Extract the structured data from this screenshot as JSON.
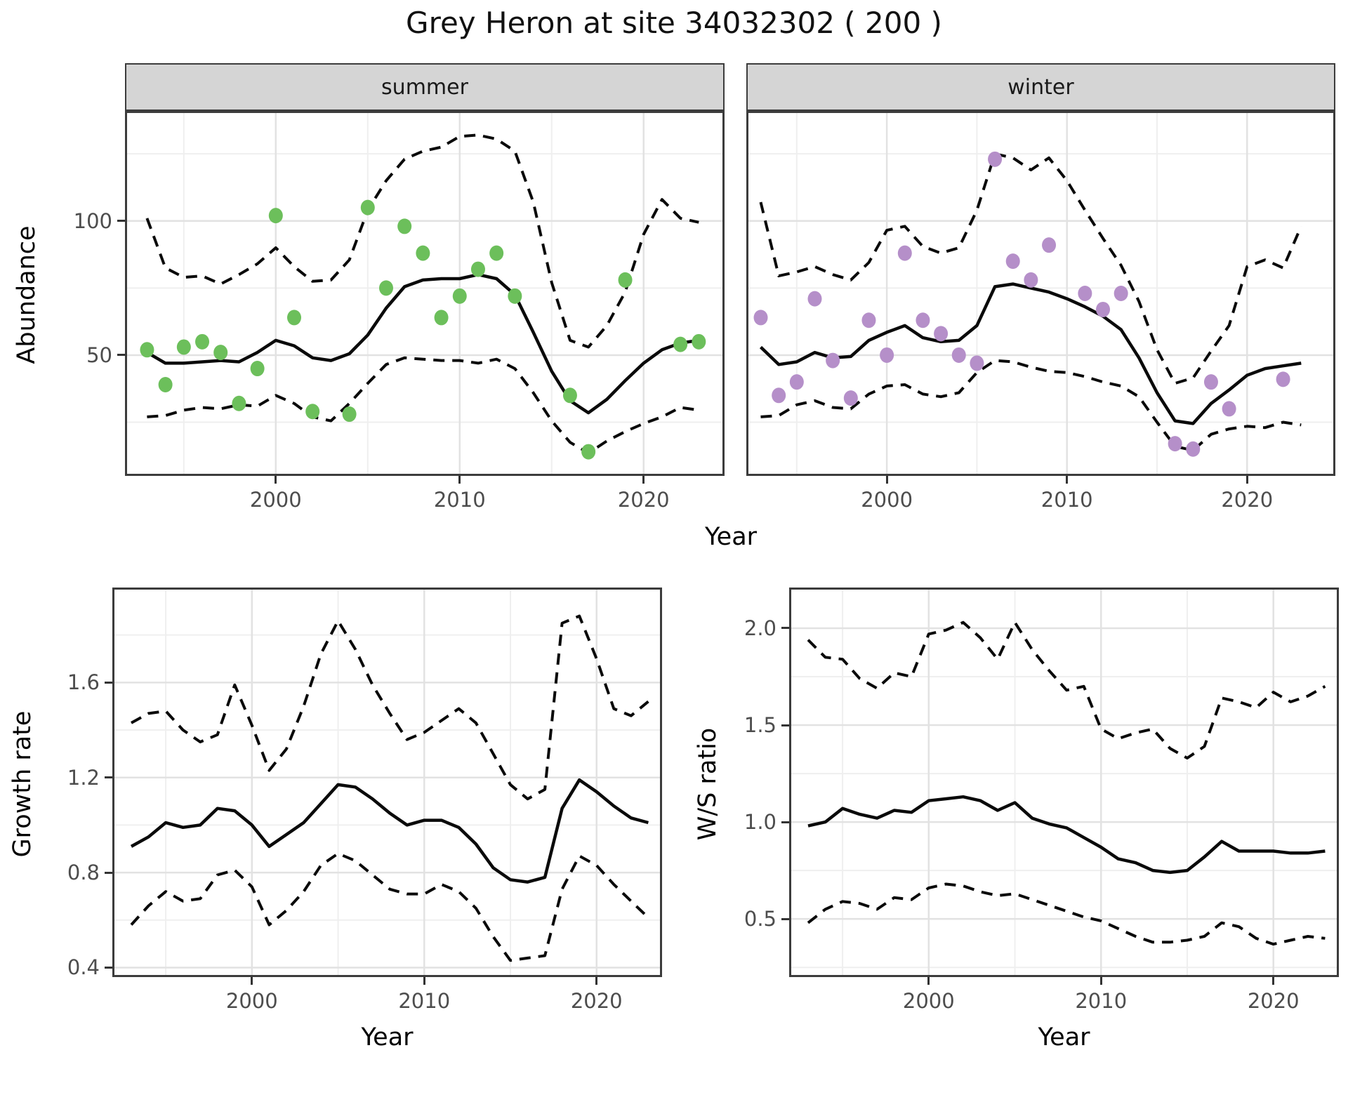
{
  "title": "Grey Heron at site 34032302 ( 200 )",
  "facets": {
    "summer": "summer",
    "winter": "winter"
  },
  "axes": {
    "abundance": "Abundance",
    "growth_rate": "Growth rate",
    "ws_ratio": "W/S ratio",
    "year": "Year"
  },
  "colors": {
    "summer_point": "#6cbf5b",
    "winter_point": "#b58fc9",
    "line": "#0a0a0a",
    "grid_major": "#e2e2e2",
    "grid_minor": "#efefef",
    "strip_bg": "#d5d5d5",
    "panel_border": "#3c3c3c",
    "tick_text": "#4d4d4d"
  },
  "chart_data": [
    {
      "id": "abundance-summer",
      "type": "line+scatter",
      "facet_label": "summer",
      "xlabel": "Year",
      "ylabel": "Abundance",
      "xlim": [
        1991.8,
        2024.4
      ],
      "ylim": [
        5,
        141
      ],
      "x_ticks": [
        2000,
        2010,
        2020
      ],
      "x_tick_labels": [
        "2000",
        "2010",
        "2020"
      ],
      "x_minor": [
        1995,
        2005,
        2015
      ],
      "y_ticks": [
        50,
        100
      ],
      "y_tick_labels": [
        "50",
        "100"
      ],
      "y_minor": [
        25,
        75,
        125
      ],
      "show_y_tick_labels": true,
      "years": [
        1993,
        1994,
        1995,
        1996,
        1997,
        1998,
        1999,
        2000,
        2001,
        2002,
        2003,
        2004,
        2005,
        2006,
        2007,
        2008,
        2009,
        2010,
        2011,
        2012,
        2013,
        2014,
        2015,
        2016,
        2017,
        2018,
        2019,
        2020,
        2021,
        2022,
        2023
      ],
      "series": [
        {
          "name": "fit",
          "style": "solid",
          "values": [
            51,
            47,
            47,
            47.5,
            48,
            47.5,
            51,
            55.5,
            53.5,
            49,
            48,
            50.5,
            57.5,
            67.5,
            75.5,
            78,
            78.5,
            78.5,
            80,
            78.5,
            72.5,
            58.5,
            44,
            33,
            28.5,
            33.5,
            40.5,
            47,
            52,
            54.5,
            55.5
          ]
        },
        {
          "name": "upper-ci",
          "style": "dashed",
          "values": [
            101,
            82.5,
            79,
            79.5,
            76.5,
            80,
            84,
            90,
            83,
            77.5,
            78,
            85.5,
            104,
            115,
            123,
            126,
            127.5,
            131.5,
            132,
            130.5,
            126,
            107,
            77,
            55.5,
            53,
            61,
            73.5,
            95,
            108,
            101,
            99.5
          ]
        },
        {
          "name": "lower-ci",
          "style": "dashed",
          "values": [
            27,
            27.5,
            29.5,
            30.5,
            30,
            31.5,
            31,
            35,
            32,
            27,
            25.5,
            32,
            39.5,
            46.5,
            49,
            48.5,
            48,
            48,
            47,
            48.5,
            45,
            36,
            25.5,
            17.5,
            13.5,
            18,
            21.5,
            24.5,
            27,
            30.5,
            29.5
          ]
        }
      ],
      "points": {
        "name": "summer-observations",
        "color_key": "summer_point",
        "x": [
          1993,
          1994,
          1995,
          1996,
          1997,
          1998,
          1999,
          2000,
          2001,
          2002,
          2004,
          2005,
          2006,
          2007,
          2008,
          2009,
          2010,
          2011,
          2012,
          2013,
          2016,
          2017,
          2019,
          2022,
          2023
        ],
        "y": [
          52,
          39,
          53,
          55,
          51,
          32,
          45,
          102,
          64,
          29,
          28,
          105,
          75,
          98,
          88,
          64,
          72,
          82,
          88,
          72,
          35,
          14,
          78,
          54,
          55
        ]
      }
    },
    {
      "id": "abundance-winter",
      "type": "line+scatter",
      "facet_label": "winter",
      "xlabel": "Year",
      "ylabel": "Abundance",
      "xlim": [
        1992.2,
        2024.9
      ],
      "ylim": [
        5,
        141
      ],
      "x_ticks": [
        2000,
        2010,
        2020
      ],
      "x_tick_labels": [
        "2000",
        "2010",
        "2020"
      ],
      "x_minor": [
        1995,
        2005,
        2015
      ],
      "y_ticks": [
        50,
        100
      ],
      "y_tick_labels": null,
      "y_minor": [
        25,
        75,
        125
      ],
      "show_y_tick_labels": false,
      "years": [
        1993,
        1994,
        1995,
        1996,
        1997,
        1998,
        1999,
        2000,
        2001,
        2002,
        2003,
        2004,
        2005,
        2006,
        2007,
        2008,
        2009,
        2010,
        2011,
        2012,
        2013,
        2014,
        2015,
        2016,
        2017,
        2018,
        2019,
        2020,
        2021,
        2022,
        2023
      ],
      "series": [
        {
          "name": "fit",
          "style": "solid",
          "values": [
            53,
            46.5,
            47.5,
            51,
            49,
            49.5,
            55.5,
            58.5,
            61,
            56.5,
            55,
            55.5,
            61,
            75.5,
            76.5,
            75,
            73.5,
            71,
            68,
            64.5,
            59.5,
            49,
            36,
            25.5,
            24.5,
            32,
            37,
            42.5,
            45,
            46,
            47
          ]
        },
        {
          "name": "upper-ci",
          "style": "dashed",
          "values": [
            107,
            79.5,
            81,
            83,
            80,
            78,
            84.5,
            96.5,
            98,
            90.5,
            88,
            90,
            104,
            125,
            123.5,
            119,
            123.5,
            115,
            104,
            93.5,
            83.5,
            70,
            52,
            39.5,
            41.5,
            51.5,
            61,
            83,
            85.5,
            82.5,
            98
          ]
        },
        {
          "name": "lower-ci",
          "style": "dashed",
          "values": [
            27,
            27.5,
            31.5,
            33,
            30.5,
            30,
            35.5,
            38.5,
            39,
            35.5,
            34.5,
            36,
            43.5,
            48,
            47.5,
            45.5,
            44,
            43.5,
            42,
            40,
            38.5,
            34.5,
            25,
            16,
            14.5,
            20.5,
            22.5,
            23.5,
            23,
            25,
            24
          ]
        }
      ],
      "points": {
        "name": "winter-observations",
        "color_key": "winter_point",
        "x": [
          1993,
          1994,
          1995,
          1996,
          1997,
          1998,
          1999,
          2000,
          2001,
          2002,
          2003,
          2004,
          2005,
          2006,
          2007,
          2008,
          2009,
          2011,
          2012,
          2013,
          2016,
          2017,
          2018,
          2019,
          2022
        ],
        "y": [
          64,
          35,
          40,
          71,
          48,
          34,
          63,
          50,
          88,
          63,
          58,
          50,
          47,
          123,
          85,
          78,
          91,
          73,
          67,
          73,
          17,
          15,
          40,
          30,
          41
        ]
      }
    },
    {
      "id": "growth-rate",
      "type": "line",
      "facet_label": null,
      "xlabel": "Year",
      "ylabel": "Growth rate",
      "xlim": [
        1991.9,
        2023.8
      ],
      "ylim": [
        0.36,
        2.0
      ],
      "x_ticks": [
        2000,
        2010,
        2020
      ],
      "x_tick_labels": [
        "2000",
        "2010",
        "2020"
      ],
      "x_minor": [
        1995,
        2005,
        2015
      ],
      "y_ticks": [
        0.4,
        0.8,
        1.2,
        1.6
      ],
      "y_tick_labels": [
        "0.4",
        "0.8",
        "1.2",
        "1.6"
      ],
      "y_minor": [
        0.6,
        1.0,
        1.4,
        1.8
      ],
      "show_y_tick_labels": true,
      "years": [
        1993,
        1994,
        1995,
        1996,
        1997,
        1998,
        1999,
        2000,
        2001,
        2002,
        2003,
        2004,
        2005,
        2006,
        2007,
        2008,
        2009,
        2010,
        2011,
        2012,
        2013,
        2014,
        2015,
        2016,
        2017,
        2018,
        2019,
        2020,
        2021,
        2022,
        2023
      ],
      "series": [
        {
          "name": "fit",
          "style": "solid",
          "values": [
            0.91,
            0.95,
            1.01,
            0.99,
            1.0,
            1.07,
            1.06,
            1.0,
            0.91,
            0.96,
            1.01,
            1.09,
            1.17,
            1.16,
            1.11,
            1.05,
            1.0,
            1.02,
            1.02,
            0.99,
            0.92,
            0.82,
            0.77,
            0.76,
            0.78,
            1.07,
            1.19,
            1.14,
            1.08,
            1.03,
            1.01
          ]
        },
        {
          "name": "upper-ci",
          "style": "dashed",
          "values": [
            1.43,
            1.47,
            1.48,
            1.4,
            1.35,
            1.38,
            1.59,
            1.42,
            1.23,
            1.32,
            1.5,
            1.72,
            1.86,
            1.74,
            1.59,
            1.47,
            1.36,
            1.39,
            1.44,
            1.49,
            1.43,
            1.3,
            1.17,
            1.11,
            1.15,
            1.85,
            1.88,
            1.7,
            1.49,
            1.46,
            1.52
          ]
        },
        {
          "name": "lower-ci",
          "style": "dashed",
          "values": [
            0.58,
            0.66,
            0.72,
            0.68,
            0.69,
            0.79,
            0.81,
            0.74,
            0.58,
            0.64,
            0.72,
            0.83,
            0.88,
            0.85,
            0.79,
            0.73,
            0.71,
            0.71,
            0.75,
            0.72,
            0.65,
            0.53,
            0.43,
            0.44,
            0.45,
            0.73,
            0.87,
            0.83,
            0.75,
            0.68,
            0.61
          ]
        }
      ],
      "points": null
    },
    {
      "id": "ws-ratio",
      "type": "line",
      "facet_label": null,
      "xlabel": "Year",
      "ylabel": "W/S ratio",
      "xlim": [
        1991.9,
        2023.8
      ],
      "ylim": [
        0.2,
        2.21
      ],
      "x_ticks": [
        2000,
        2010,
        2020
      ],
      "x_tick_labels": [
        "2000",
        "2010",
        "2020"
      ],
      "x_minor": [
        1995,
        2005,
        2015
      ],
      "y_ticks": [
        0.5,
        1.0,
        1.5,
        2.0
      ],
      "y_tick_labels": [
        "0.5",
        "1.0",
        "1.5",
        "2.0"
      ],
      "y_minor": [
        0.25,
        0.75,
        1.25,
        1.75
      ],
      "show_y_tick_labels": true,
      "years": [
        1993,
        1994,
        1995,
        1996,
        1997,
        1998,
        1999,
        2000,
        2001,
        2002,
        2003,
        2004,
        2005,
        2006,
        2007,
        2008,
        2009,
        2010,
        2011,
        2012,
        2013,
        2014,
        2015,
        2016,
        2017,
        2018,
        2019,
        2020,
        2021,
        2022,
        2023
      ],
      "series": [
        {
          "name": "fit",
          "style": "solid",
          "values": [
            0.98,
            1.0,
            1.07,
            1.04,
            1.02,
            1.06,
            1.05,
            1.11,
            1.12,
            1.13,
            1.11,
            1.06,
            1.1,
            1.02,
            0.99,
            0.97,
            0.92,
            0.87,
            0.81,
            0.79,
            0.75,
            0.74,
            0.75,
            0.82,
            0.9,
            0.85,
            0.85,
            0.85,
            0.84,
            0.84,
            0.85
          ]
        },
        {
          "name": "upper-ci",
          "style": "dashed",
          "values": [
            1.94,
            1.85,
            1.84,
            1.74,
            1.69,
            1.77,
            1.75,
            1.97,
            1.99,
            2.03,
            1.95,
            1.84,
            2.03,
            1.89,
            1.78,
            1.68,
            1.7,
            1.48,
            1.43,
            1.46,
            1.48,
            1.38,
            1.33,
            1.39,
            1.64,
            1.62,
            1.59,
            1.67,
            1.62,
            1.65,
            1.7
          ]
        },
        {
          "name": "lower-ci",
          "style": "dashed",
          "values": [
            0.48,
            0.55,
            0.59,
            0.58,
            0.55,
            0.61,
            0.6,
            0.66,
            0.68,
            0.67,
            0.64,
            0.62,
            0.63,
            0.6,
            0.57,
            0.54,
            0.51,
            0.49,
            0.45,
            0.41,
            0.38,
            0.38,
            0.39,
            0.41,
            0.48,
            0.46,
            0.4,
            0.37,
            0.39,
            0.41,
            0.4
          ]
        }
      ],
      "points": null
    }
  ]
}
